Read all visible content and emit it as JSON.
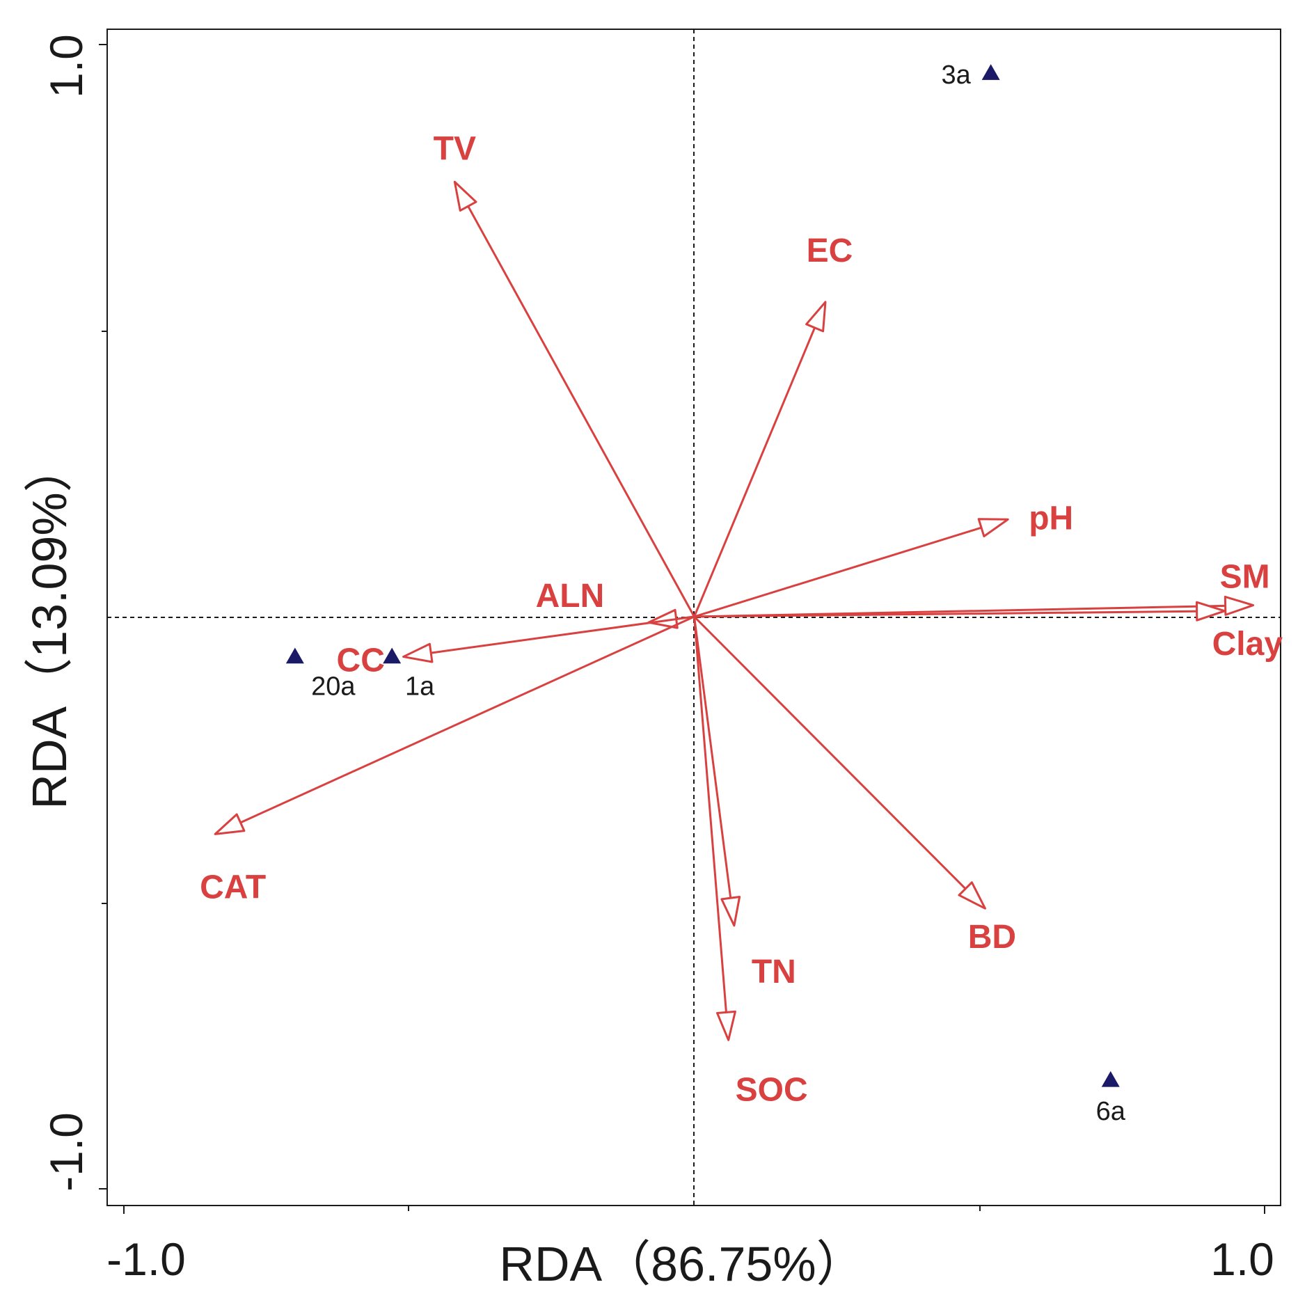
{
  "chart_data": {
    "type": "scatter",
    "subtype": "rda-biplot",
    "title": "",
    "xlabel": "RDA（86.75%）",
    "ylabel": "RDA（13.09%）",
    "xlim": [
      -1.0,
      1.0
    ],
    "ylim": [
      -1.0,
      1.0
    ],
    "x_tick_labels": [
      "-1.0",
      "1.0"
    ],
    "y_tick_labels": [
      "-1.0",
      "1.0"
    ],
    "grid": false,
    "reference_lines": [
      0,
      0
    ],
    "colors": {
      "arrow": "#d94040",
      "site": "#1a1a66",
      "axis": "#1a1a1a"
    },
    "arrows": [
      {
        "label": "TV",
        "x": -0.42,
        "y": 0.76
      },
      {
        "label": "EC",
        "x": 0.23,
        "y": 0.55
      },
      {
        "label": "pH",
        "x": 0.55,
        "y": 0.17
      },
      {
        "label": "SM",
        "x": 0.98,
        "y": 0.02
      },
      {
        "label": "Clay",
        "x": 0.93,
        "y": 0.01
      },
      {
        "label": "ALN",
        "x": -0.08,
        "y": -0.01
      },
      {
        "label": "CC",
        "x": -0.51,
        "y": -0.07
      },
      {
        "label": "CAT",
        "x": -0.84,
        "y": -0.38
      },
      {
        "label": "TN",
        "x": 0.07,
        "y": -0.54
      },
      {
        "label": "SOC",
        "x": 0.06,
        "y": -0.74
      },
      {
        "label": "BD",
        "x": 0.51,
        "y": -0.51
      }
    ],
    "sites": [
      {
        "label": "3a",
        "x": 0.52,
        "y": 0.95
      },
      {
        "label": "20a",
        "x": -0.7,
        "y": -0.07
      },
      {
        "label": "1a",
        "x": -0.53,
        "y": -0.07
      },
      {
        "label": "6a",
        "x": 0.73,
        "y": -0.81
      }
    ]
  }
}
